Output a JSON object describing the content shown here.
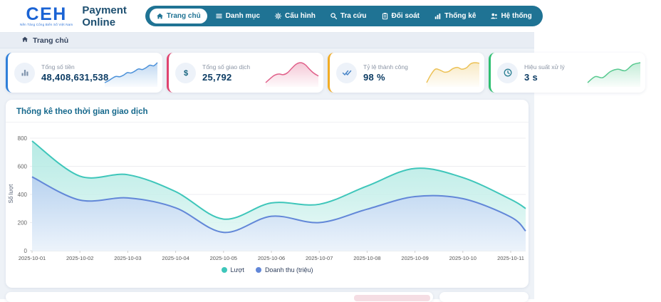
{
  "theme": {
    "nav_bg": "#1f7394",
    "page_bg": "#eef2f7",
    "brand_blue": "#1a63d4",
    "title_teal": "#15688c",
    "value_navy": "#0c3c64"
  },
  "header": {
    "logo": {
      "text": "CEH",
      "tagline": "Nền Tảng Cổng Biển Số Việt Nam"
    },
    "app_title": "Payment Online",
    "nav_items": [
      {
        "label": "Trang chủ",
        "icon": "home",
        "active": true
      },
      {
        "label": "Danh mục",
        "icon": "menu",
        "active": false
      },
      {
        "label": "Cấu hình",
        "icon": "gear",
        "active": false
      },
      {
        "label": "Tra cứu",
        "icon": "search",
        "active": false
      },
      {
        "label": "Đối soát",
        "icon": "clipboard",
        "active": false
      },
      {
        "label": "Thống kê",
        "icon": "bar-chart",
        "active": false
      },
      {
        "label": "Hệ thống",
        "icon": "users",
        "active": false
      }
    ]
  },
  "breadcrumb": {
    "label": "Trang chủ",
    "icon": "home"
  },
  "stat_cards": [
    {
      "label": "Tổng số tiền",
      "value": "48,408,631,538",
      "icon": "bars",
      "accent": "#2e7fd9",
      "icon_color": "#7e93ac",
      "spark_color": "#4a90d9",
      "spark": [
        10,
        16,
        24,
        30,
        29,
        34,
        42,
        41,
        47,
        54,
        52,
        58,
        66,
        64,
        74
      ]
    },
    {
      "label": "Tổng số giao dịch",
      "value": "25,792",
      "icon": "dollar",
      "accent": "#e0436f",
      "icon_color": "#14627e",
      "spark_color": "#e0608a",
      "spark": [
        18,
        30,
        40,
        44,
        42,
        48,
        62,
        74,
        78,
        72,
        58,
        46,
        38
      ]
    },
    {
      "label": "Tỷ lệ thành công",
      "value": "98 %",
      "icon": "double-check",
      "accent": "#f1ac25",
      "icon_color": "#4a86c8",
      "spark_color": "#ecc155",
      "spark": [
        12,
        40,
        58,
        55,
        48,
        50,
        60,
        64,
        58,
        62,
        76,
        80,
        78
      ]
    },
    {
      "label": "Hiệu suất xử lý",
      "value": "3 s",
      "icon": "clock",
      "accent": "#2fbf71",
      "icon_color": "#2a7f92",
      "spark_color": "#57c98f",
      "spark": [
        20,
        32,
        30,
        42,
        47,
        44,
        56,
        60
      ]
    }
  ],
  "chart_data": {
    "type": "area",
    "title": "Thống kê theo thời gian giao dịch",
    "x": [
      "2025-10-01",
      "2025-10-02",
      "2025-10-03",
      "2025-10-04",
      "2025-10-05",
      "2025-10-06",
      "2025-10-07",
      "2025-10-08",
      "2025-10-09",
      "2025-10-10",
      "2025-10-11"
    ],
    "series": [
      {
        "name": "Lượt",
        "color": "#3ec6ba",
        "values": [
          780,
          530,
          540,
          420,
          225,
          340,
          330,
          460,
          585,
          520,
          365
        ],
        "edge_value": 300
      },
      {
        "name": "Doanh thu (triệu)",
        "color": "#6287d8",
        "values": [
          525,
          360,
          375,
          305,
          130,
          245,
          200,
          295,
          385,
          370,
          240
        ],
        "edge_value": 140
      }
    ],
    "ylabel": "Số lượt",
    "ylim": [
      0,
      800
    ],
    "yticks": [
      0,
      200,
      400,
      600,
      800
    ],
    "grid": true,
    "legend_position": "bottom"
  }
}
